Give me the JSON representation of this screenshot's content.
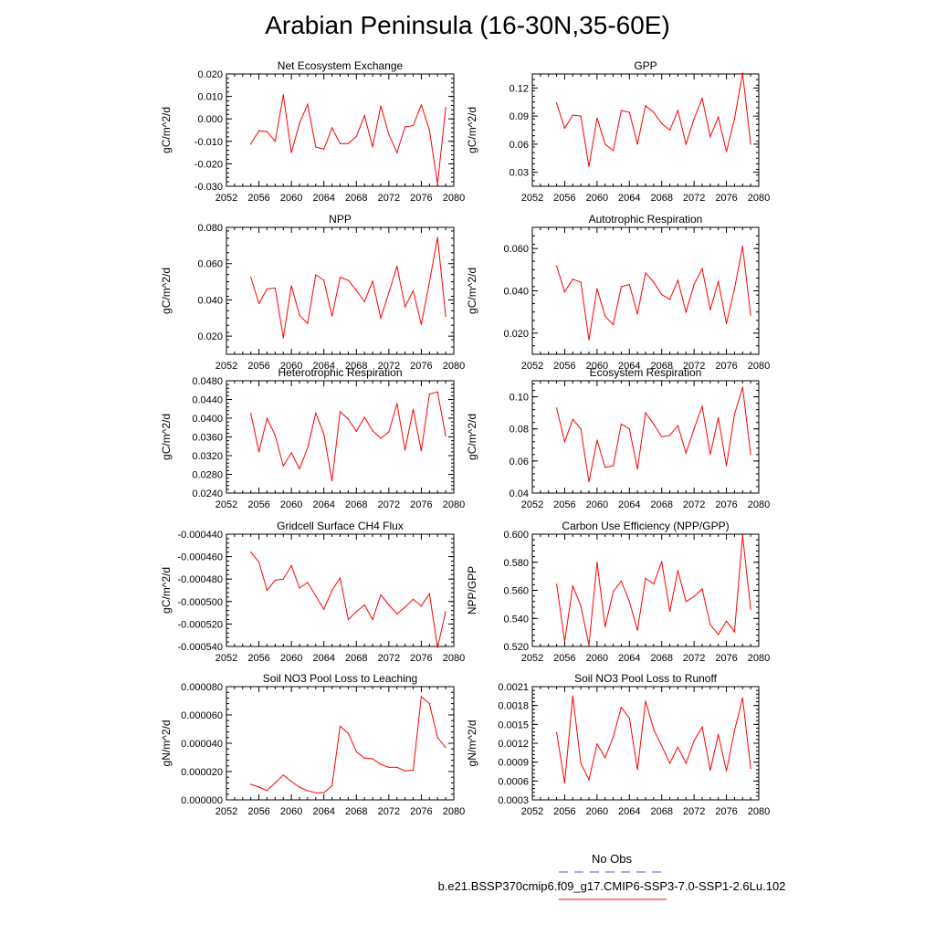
{
  "figure": {
    "title": "Arabian Peninsula (16-30N,35-60E)",
    "line_color": "#ff0000",
    "obs_color": "#4d4dff"
  },
  "legend": {
    "obs_label": "No Obs",
    "model_label": "b.e21.BSSP370cmip6.f09_g17.CMIP6-SSP3-7.0-SSP1-2.6Lu.102",
    "model_color": "#ff0000",
    "obs_color": "#4d4dff"
  },
  "chart_data": [
    {
      "type": "line",
      "title": "Net Ecosystem Exchange",
      "ylabel": "gC/m^2/d",
      "xlabel": "",
      "xlim": [
        2052,
        2080
      ],
      "xticks": [
        "2052",
        "2056",
        "2060",
        "2064",
        "2068",
        "2072",
        "2076",
        "2080"
      ],
      "ylim": [
        -0.03,
        0.02
      ],
      "yticks": [
        "-0.030",
        "-0.020",
        "-0.010",
        "0.000",
        "0.010",
        "0.020"
      ],
      "x": [
        2055,
        2056,
        2057,
        2058,
        2059,
        2060,
        2061,
        2062,
        2063,
        2064,
        2065,
        2066,
        2067,
        2068,
        2069,
        2070,
        2071,
        2072,
        2073,
        2074,
        2075,
        2076,
        2077,
        2078,
        2079
      ],
      "series": [
        {
          "values": [
            -0.0112,
            -0.0053,
            -0.0057,
            -0.01,
            0.0107,
            -0.015,
            -0.002,
            0.0065,
            -0.0125,
            -0.0135,
            -0.004,
            -0.011,
            -0.011,
            -0.0078,
            0.0015,
            -0.0125,
            0.0058,
            -0.007,
            -0.015,
            -0.0035,
            -0.003,
            0.0062,
            -0.005,
            -0.029,
            0.005
          ]
        }
      ]
    },
    {
      "type": "line",
      "title": "GPP",
      "ylabel": "gC/m^2/d",
      "xlabel": "",
      "xlim": [
        2052,
        2080
      ],
      "xticks": [
        "2052",
        "2056",
        "2060",
        "2064",
        "2068",
        "2072",
        "2076",
        "2080"
      ],
      "ylim": [
        0.015,
        0.135
      ],
      "yticks": [
        "0.03",
        "0.06",
        "0.09",
        "0.12"
      ],
      "x": [
        2055,
        2056,
        2057,
        2058,
        2059,
        2060,
        2061,
        2062,
        2063,
        2064,
        2065,
        2066,
        2067,
        2068,
        2069,
        2070,
        2071,
        2072,
        2073,
        2074,
        2075,
        2076,
        2077,
        2078,
        2079
      ],
      "series": [
        {
          "values": [
            0.104,
            0.077,
            0.091,
            0.09,
            0.036,
            0.088,
            0.06,
            0.053,
            0.096,
            0.094,
            0.06,
            0.101,
            0.094,
            0.082,
            0.075,
            0.096,
            0.06,
            0.087,
            0.109,
            0.068,
            0.089,
            0.052,
            0.087,
            0.136,
            0.06
          ]
        }
      ]
    },
    {
      "type": "line",
      "title": "NPP",
      "ylabel": "gC/m^2/d",
      "xlabel": "",
      "xlim": [
        2052,
        2080
      ],
      "xticks": [
        "2052",
        "2056",
        "2060",
        "2064",
        "2068",
        "2072",
        "2076",
        "2080"
      ],
      "ylim": [
        0.01,
        0.08
      ],
      "yticks": [
        "0.020",
        "0.040",
        "0.060",
        "0.080"
      ],
      "x": [
        2055,
        2056,
        2057,
        2058,
        2059,
        2060,
        2061,
        2062,
        2063,
        2064,
        2065,
        2066,
        2067,
        2068,
        2069,
        2070,
        2071,
        2072,
        2073,
        2074,
        2075,
        2076,
        2077,
        2078,
        2079
      ],
      "series": [
        {
          "values": [
            0.0525,
            0.038,
            0.046,
            0.0465,
            0.019,
            0.0478,
            0.0315,
            0.027,
            0.0538,
            0.0508,
            0.031,
            0.0525,
            0.0508,
            0.0452,
            0.039,
            0.0503,
            0.03,
            0.044,
            0.0585,
            0.0362,
            0.045,
            0.0265,
            0.0498,
            0.0745,
            0.031
          ]
        }
      ]
    },
    {
      "type": "line",
      "title": "Autotrophic Respiration",
      "ylabel": "gC/m^2/d",
      "xlabel": "",
      "xlim": [
        2052,
        2080
      ],
      "xticks": [
        "2052",
        "2056",
        "2060",
        "2064",
        "2068",
        "2072",
        "2076",
        "2080"
      ],
      "ylim": [
        0.01,
        0.07
      ],
      "yticks": [
        "0.020",
        "0.040",
        "0.060"
      ],
      "x": [
        2055,
        2056,
        2057,
        2058,
        2059,
        2060,
        2061,
        2062,
        2063,
        2064,
        2065,
        2066,
        2067,
        2068,
        2069,
        2070,
        2071,
        2072,
        2073,
        2074,
        2075,
        2076,
        2077,
        2078,
        2079
      ],
      "series": [
        {
          "values": [
            0.0518,
            0.0395,
            0.0455,
            0.044,
            0.0168,
            0.041,
            0.028,
            0.024,
            0.042,
            0.043,
            0.029,
            0.0485,
            0.044,
            0.0382,
            0.036,
            0.045,
            0.03,
            0.043,
            0.0505,
            0.031,
            0.0445,
            0.0245,
            0.041,
            0.061,
            0.0285
          ]
        }
      ]
    },
    {
      "type": "line",
      "title": "Heterotrophic Respiration",
      "ylabel": "gC/m^2/d",
      "xlabel": "",
      "xlim": [
        2052,
        2080
      ],
      "xticks": [
        "2052",
        "2056",
        "2060",
        "2064",
        "2068",
        "2072",
        "2076",
        "2080"
      ],
      "ylim": [
        0.024,
        0.048
      ],
      "yticks": [
        "0.0240",
        "0.0280",
        "0.0320",
        "0.0360",
        "0.0400",
        "0.0440",
        "0.0480"
      ],
      "x": [
        2055,
        2056,
        2057,
        2058,
        2059,
        2060,
        2061,
        2062,
        2063,
        2064,
        2065,
        2066,
        2067,
        2068,
        2069,
        2070,
        2071,
        2072,
        2073,
        2074,
        2075,
        2076,
        2077,
        2078,
        2079
      ],
      "series": [
        {
          "values": [
            0.041,
            0.0328,
            0.04,
            0.0363,
            0.0298,
            0.0326,
            0.0292,
            0.0336,
            0.0411,
            0.0366,
            0.0266,
            0.0414,
            0.0398,
            0.0372,
            0.0402,
            0.0373,
            0.0357,
            0.0371,
            0.0431,
            0.0332,
            0.0419,
            0.033,
            0.0452,
            0.0456,
            0.0362
          ]
        }
      ]
    },
    {
      "type": "line",
      "title": "Ecosystem Respiration",
      "ylabel": "gC/m^2/d",
      "xlabel": "",
      "xlim": [
        2052,
        2080
      ],
      "xticks": [
        "2052",
        "2056",
        "2060",
        "2064",
        "2068",
        "2072",
        "2076",
        "2080"
      ],
      "ylim": [
        0.04,
        0.11
      ],
      "yticks": [
        "0.04",
        "0.06",
        "0.08",
        "0.10"
      ],
      "x": [
        2055,
        2056,
        2057,
        2058,
        2059,
        2060,
        2061,
        2062,
        2063,
        2064,
        2065,
        2066,
        2067,
        2068,
        2069,
        2070,
        2071,
        2072,
        2073,
        2074,
        2075,
        2076,
        2077,
        2078,
        2079
      ],
      "series": [
        {
          "values": [
            0.093,
            0.072,
            0.086,
            0.08,
            0.047,
            0.073,
            0.056,
            0.057,
            0.083,
            0.08,
            0.055,
            0.09,
            0.083,
            0.075,
            0.076,
            0.082,
            0.065,
            0.08,
            0.094,
            0.064,
            0.087,
            0.057,
            0.089,
            0.106,
            0.064
          ]
        }
      ]
    },
    {
      "type": "line",
      "title": "Gridcell Surface CH4 Flux",
      "ylabel": "gC/m^2/d",
      "xlabel": "",
      "xlim": [
        2052,
        2080
      ],
      "xticks": [
        "2052",
        "2056",
        "2060",
        "2064",
        "2068",
        "2072",
        "2076",
        "2080"
      ],
      "ylim": [
        -0.00054,
        -0.00044
      ],
      "yticks": [
        "-0.000540",
        "-0.000520",
        "-0.000500",
        "-0.000480",
        "-0.000460",
        "-0.000440"
      ],
      "x": [
        2055,
        2056,
        2057,
        2058,
        2059,
        2060,
        2061,
        2062,
        2063,
        2064,
        2065,
        2066,
        2067,
        2068,
        2069,
        2070,
        2071,
        2072,
        2073,
        2074,
        2075,
        2076,
        2077,
        2078,
        2079
      ],
      "series": [
        {
          "values": [
            -0.000456,
            -0.000465,
            -0.00049,
            -0.000481,
            -0.00048,
            -0.000468,
            -0.000488,
            -0.000483,
            -0.000495,
            -0.000507,
            -0.00049,
            -0.000479,
            -0.000516,
            -0.000509,
            -0.000503,
            -0.000516,
            -0.000494,
            -0.000503,
            -0.000511,
            -0.000505,
            -0.000498,
            -0.000504,
            -0.000493,
            -0.000541,
            -0.000509
          ]
        }
      ]
    },
    {
      "type": "line",
      "title": "Carbon Use Efficiency (NPP/GPP)",
      "ylabel": "NPP/GPP",
      "xlabel": "",
      "xlim": [
        2052,
        2080
      ],
      "xticks": [
        "2052",
        "2056",
        "2060",
        "2064",
        "2068",
        "2072",
        "2076",
        "2080"
      ],
      "ylim": [
        0.52,
        0.6
      ],
      "yticks": [
        "0.520",
        "0.540",
        "0.560",
        "0.580",
        "0.600"
      ],
      "x": [
        2055,
        2056,
        2057,
        2058,
        2059,
        2060,
        2061,
        2062,
        2063,
        2064,
        2065,
        2066,
        2067,
        2068,
        2069,
        2070,
        2071,
        2072,
        2073,
        2074,
        2075,
        2076,
        2077,
        2078,
        2079
      ],
      "series": [
        {
          "values": [
            0.5645,
            0.5235,
            0.563,
            0.549,
            0.521,
            0.58,
            0.534,
            0.559,
            0.5665,
            0.552,
            0.5315,
            0.5685,
            0.5645,
            0.5805,
            0.545,
            0.574,
            0.552,
            0.5555,
            0.561,
            0.5355,
            0.5285,
            0.538,
            0.5305,
            0.599,
            0.5465
          ]
        }
      ]
    },
    {
      "type": "line",
      "title": "Soil NO3 Pool Loss to Leaching",
      "ylabel": "gN/m^2/d",
      "xlabel": "",
      "xlim": [
        2052,
        2080
      ],
      "xticks": [
        "2052",
        "2056",
        "2060",
        "2064",
        "2068",
        "2072",
        "2076",
        "2080"
      ],
      "ylim": [
        0,
        8e-05
      ],
      "yticks": [
        "0.000000",
        "0.000020",
        "0.000040",
        "0.000060",
        "0.000080"
      ],
      "x": [
        2055,
        2056,
        2057,
        2058,
        2059,
        2060,
        2061,
        2062,
        2063,
        2064,
        2065,
        2066,
        2067,
        2068,
        2069,
        2070,
        2071,
        2072,
        2073,
        2074,
        2075,
        2076,
        2077,
        2078,
        2079
      ],
      "series": [
        {
          "values": [
            1.1e-05,
            9e-06,
            6.5e-06,
            1.2e-05,
            1.75e-05,
            1.3e-05,
            9e-06,
            6.5e-06,
            5e-06,
            5e-06,
            1e-05,
            5.2e-05,
            4.7e-05,
            3.4e-05,
            2.95e-05,
            2.9e-05,
            2.5e-05,
            2.3e-05,
            2.3e-05,
            2.05e-05,
            2.1e-05,
            7.3e-05,
            6.8e-05,
            4.4e-05,
            3.7e-05
          ]
        }
      ]
    },
    {
      "type": "line",
      "title": "Soil NO3 Pool Loss to Runoff",
      "ylabel": "gN/m^2/d",
      "xlabel": "",
      "xlim": [
        2052,
        2080
      ],
      "xticks": [
        "2052",
        "2056",
        "2060",
        "2064",
        "2068",
        "2072",
        "2076",
        "2080"
      ],
      "ylim": [
        0.0003,
        0.0021
      ],
      "yticks": [
        "0.0003",
        "0.0006",
        "0.0009",
        "0.0012",
        "0.0015",
        "0.0018",
        "0.0021"
      ],
      "x": [
        2055,
        2056,
        2057,
        2058,
        2059,
        2060,
        2061,
        2062,
        2063,
        2064,
        2065,
        2066,
        2067,
        2068,
        2069,
        2070,
        2071,
        2072,
        2073,
        2074,
        2075,
        2076,
        2077,
        2078,
        2079
      ],
      "series": [
        {
          "values": [
            0.00137,
            0.00057,
            0.00195,
            0.00088,
            0.00062,
            0.00119,
            0.00097,
            0.0013,
            0.00177,
            0.0016,
            0.00078,
            0.00187,
            0.00142,
            0.00116,
            0.00088,
            0.00114,
            0.00088,
            0.00124,
            0.00146,
            0.00077,
            0.00134,
            0.00076,
            0.0014,
            0.00192,
            0.0008
          ]
        }
      ]
    }
  ]
}
